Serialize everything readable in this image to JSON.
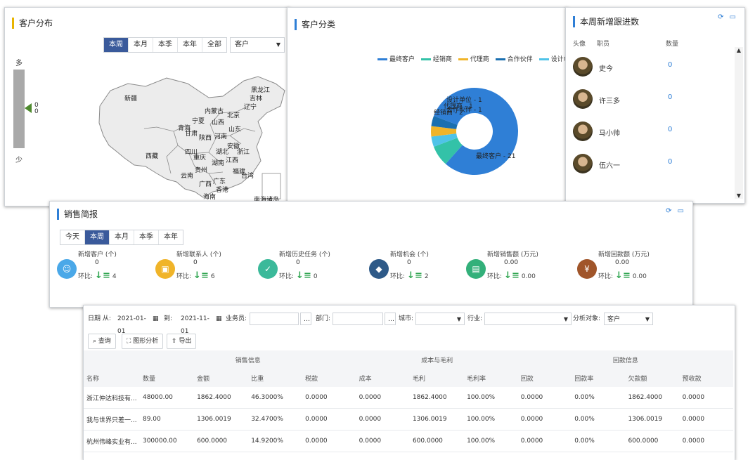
{
  "map_panel": {
    "title": "客户分布",
    "tabs": [
      "本周",
      "本月",
      "本季",
      "本年",
      "全部"
    ],
    "active_tab": "本周",
    "select_value": "客户",
    "legend_high": "多",
    "legend_low": "少",
    "legend_values": [
      "0",
      "0"
    ],
    "provinces": [
      "新疆",
      "西藏",
      "黑龙江",
      "吉林",
      "辽宁",
      "内蒙古",
      "北京",
      "宁夏",
      "山西",
      "山东",
      "青海",
      "甘肃",
      "陕西",
      "河南",
      "四川",
      "重庆",
      "湖北",
      "安徽",
      "浙江",
      "湖南",
      "江西",
      "贵州",
      "云南",
      "广西",
      "广东",
      "福建",
      "台湾",
      "香港",
      "海南",
      "南海诸岛"
    ]
  },
  "category_panel": {
    "title": "客户分类",
    "legend": [
      {
        "name": "最终客户",
        "color": "#2f7fd6"
      },
      {
        "name": "经销商",
        "color": "#33c2a8"
      },
      {
        "name": "代理商",
        "color": "#f0b429"
      },
      {
        "name": "合作伙伴",
        "color": "#1a6fb0"
      },
      {
        "name": "设计单",
        "color": "#4fc3e8"
      }
    ],
    "chart_data": {
      "type": "pie",
      "title": "",
      "categories": [
        "最终客户",
        "经销商",
        "设计单位",
        "代理商",
        "合作伙伴"
      ],
      "values": [
        21,
        2,
        1,
        1,
        1
      ],
      "colors": [
        "#2f7fd6",
        "#33c2a8",
        "#4fc3e8",
        "#f0b429",
        "#1a6fb0"
      ],
      "data_labels": [
        "最终客户 - 21",
        "经销商 - 2",
        "设计单位 - 1",
        "代理商 - 1",
        "合作伙伴 - 1"
      ]
    }
  },
  "followup_panel": {
    "title": "本周新增跟进数",
    "col_avatar": "头像",
    "col_staff": "职员",
    "col_count": "数量",
    "rows": [
      {
        "name": "史今",
        "count": "0"
      },
      {
        "name": "许三多",
        "count": "0"
      },
      {
        "name": "马小帅",
        "count": "0"
      },
      {
        "name": "伍六一",
        "count": "0"
      }
    ]
  },
  "report_panel": {
    "title": "销售简报",
    "tabs": [
      "今天",
      "本周",
      "本月",
      "本季",
      "本年"
    ],
    "active_tab": "本周",
    "stats": [
      {
        "label": "新增客户 (个)",
        "value": "0",
        "cmp_label": "环比:",
        "cmp_value": "4",
        "color": "#4aa8e8",
        "icon": "user-icon"
      },
      {
        "label": "新增联系人 (个)",
        "value": "0",
        "cmp_label": "环比:",
        "cmp_value": "6",
        "color": "#f0b429",
        "icon": "contact-icon"
      },
      {
        "label": "新增历史任务 (个)",
        "value": "0",
        "cmp_label": "环比:",
        "cmp_value": "0",
        "color": "#3bb99a",
        "icon": "task-icon"
      },
      {
        "label": "新增机会 (个)",
        "value": "0",
        "cmp_label": "环比:",
        "cmp_value": "2",
        "color": "#2e5a88",
        "icon": "opportunity-icon"
      },
      {
        "label": "新增销售额 (万元)",
        "value": "0.00",
        "cmp_label": "环比:",
        "cmp_value": "0.00",
        "color": "#33b07a",
        "icon": "sales-icon"
      },
      {
        "label": "新增回款额 (万元)",
        "value": "0.00",
        "cmp_label": "环比:",
        "cmp_value": "0.00",
        "color": "#a0552a",
        "icon": "money-bag-icon"
      }
    ]
  },
  "table_panel": {
    "date_from_label": "日期 从:",
    "date_from": "2021-01-01",
    "date_to_label": "到:",
    "date_to": "2021-11-01",
    "salesman_label": "业务员:",
    "dept_label": "部门:",
    "city_label": "城市:",
    "industry_label": "行业:",
    "target_label": "分析对象:",
    "target_value": "客户",
    "btn_query": "查询",
    "btn_chart": "图形分析",
    "btn_export": "导出",
    "groups": [
      "销售信息",
      "成本与毛利",
      "回款信息"
    ],
    "columns": [
      "名称",
      "数量",
      "金额",
      "比重",
      "税款",
      "成本",
      "毛利",
      "毛利率",
      "回款",
      "回款率",
      "欠款额",
      "预收款"
    ],
    "rows": [
      [
        "浙江仲达科技有...",
        "48000.00",
        "1862.4000",
        "46.3000%",
        "0.0000",
        "0.0000",
        "1862.4000",
        "100.00%",
        "0.0000",
        "0.00%",
        "1862.4000",
        "0.0000"
      ],
      [
        "我与世界只差一...",
        "89.00",
        "1306.0019",
        "32.4700%",
        "0.0000",
        "0.0000",
        "1306.0019",
        "100.00%",
        "0.0000",
        "0.00%",
        "1306.0019",
        "0.0000"
      ],
      [
        "杭州伟峰实业有...",
        "300000.00",
        "600.0000",
        "14.9200%",
        "0.0000",
        "0.0000",
        "600.0000",
        "100.00%",
        "0.0000",
        "0.00%",
        "600.0000",
        "0.0000"
      ]
    ]
  }
}
